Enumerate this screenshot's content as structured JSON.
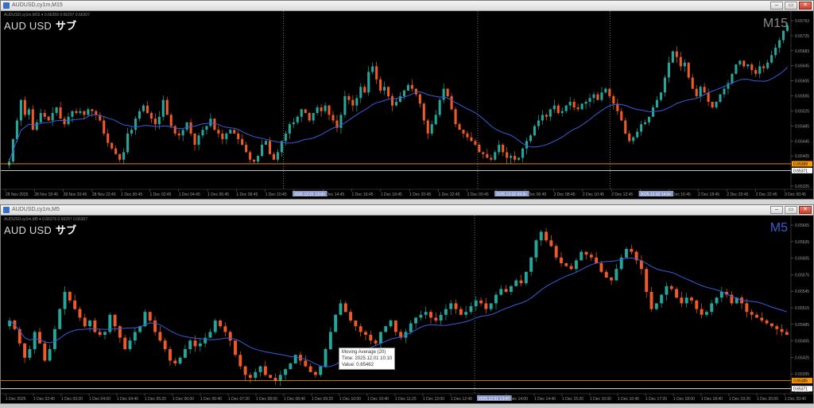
{
  "colors": {
    "background": "#000000",
    "bull": "#26a69a",
    "bear": "#ef5a28",
    "ma": "#3b5bdb",
    "axis_text": "#9a9a9a",
    "grid_marker": "#bbbbbb",
    "price_line_orange": "#ff9900",
    "price_line_white": "#ffffff",
    "m5_label": "#3a5cd0",
    "m15_label": "#8a8a8a"
  },
  "windows": [
    {
      "title": "AUDUSD,cy1m,M15",
      "ohlc": "AUDUSD,cy1m,M15 ▾ 0.66359 0.66297 0.66307",
      "symbol": "AUD USD",
      "sub_label": "サブ",
      "timeframe": "M15",
      "timeframe_color": "#8a8a8a",
      "chart_data": {
        "type": "candlestick",
        "series_name": "AUDUSD M15",
        "ylim": [
          0.65325,
          0.65785
        ],
        "y_ticks": [
          "0.65763",
          "0.65725",
          "0.65683",
          "0.65645",
          "0.65605",
          "0.65565",
          "0.65525",
          "0.65485",
          "0.65445",
          "0.65405",
          "0.65365",
          "0.65325"
        ],
        "x_ticks": [
          "28 Nov 2025",
          "28 Nov 18:45",
          "28 Nov 20:45",
          "28 Nov 22:45",
          "1 Dec 00:45",
          "1 Dec 02:45",
          "1 Dec 04:45",
          "1 Dec 06:45",
          "1 Dec 08:45",
          "1 Dec 10:45",
          "2025.12.01 13:00",
          "1 Dec 14:45",
          "1 Dec 16:45",
          "1 Dec 18:45",
          "1 Dec 20:45",
          "1 Dec 22:45",
          "2 Dec 00:45",
          "2025.12.02 03:30",
          "2 Dec 06:45",
          "2 Dec 08:45",
          "2 Dec 10:45",
          "2 Dec 12:45",
          "2025.12.02 14:00",
          "2 Dec 16:45",
          "2 Dec 18:45",
          "2 Dec 20:45",
          "2 Dec 22:45",
          "3 Dec 00:45"
        ],
        "price_labels": [
          {
            "value": "0.65389",
            "color": "#ff9900"
          },
          {
            "value": "0.65371",
            "color": "#ffffff"
          }
        ],
        "price_line_values": [
          0.65389,
          0.65371
        ],
        "vertical_markers_frac": [
          0.355,
          0.602,
          0.77
        ],
        "closes": [
          0.65395,
          0.65455,
          0.65505,
          0.6556,
          0.6552,
          0.65535,
          0.6548,
          0.655,
          0.65525,
          0.65515,
          0.65505,
          0.65525,
          0.6554,
          0.6551,
          0.65495,
          0.65515,
          0.6553,
          0.65525,
          0.6553,
          0.6552,
          0.65535,
          0.6553,
          0.6552,
          0.65505,
          0.6547,
          0.65445,
          0.6543,
          0.65415,
          0.654,
          0.6542,
          0.6547,
          0.6548,
          0.6551,
          0.6553,
          0.65545,
          0.65525,
          0.6551,
          0.65495,
          0.65515,
          0.6556,
          0.6552,
          0.6549,
          0.6547,
          0.65465,
          0.6548,
          0.655,
          0.6547,
          0.6544,
          0.65465,
          0.6548,
          0.6549,
          0.6551,
          0.6548,
          0.6547,
          0.65455,
          0.6547,
          0.6548,
          0.6547,
          0.65455,
          0.6544,
          0.6542,
          0.654,
          0.65395,
          0.6541,
          0.6544,
          0.6545,
          0.65415,
          0.654,
          0.6542,
          0.6545,
          0.6547,
          0.65495,
          0.655,
          0.65515,
          0.65535,
          0.65525,
          0.65505,
          0.65525,
          0.6554,
          0.6553,
          0.65545,
          0.6552,
          0.65505,
          0.65485,
          0.6552,
          0.6557,
          0.6556,
          0.65545,
          0.65565,
          0.65595,
          0.6558,
          0.65635,
          0.6565,
          0.65615,
          0.65585,
          0.65595,
          0.6557,
          0.65545,
          0.65555,
          0.6557,
          0.65585,
          0.656,
          0.6559,
          0.65575,
          0.6555,
          0.65505,
          0.6547,
          0.65495,
          0.6552,
          0.6556,
          0.6559,
          0.6557,
          0.65535,
          0.65495,
          0.6548,
          0.6547,
          0.6546,
          0.6545,
          0.6544,
          0.6542,
          0.65415,
          0.65405,
          0.654,
          0.6542,
          0.6544,
          0.6542,
          0.65405,
          0.6541,
          0.654,
          0.65405,
          0.6543,
          0.6545,
          0.65465,
          0.6549,
          0.65505,
          0.6552,
          0.65515,
          0.65535,
          0.65545,
          0.65525,
          0.6553,
          0.65545,
          0.65555,
          0.6554,
          0.65535,
          0.6555,
          0.65555,
          0.65565,
          0.65575,
          0.6556,
          0.6558,
          0.6559,
          0.6557,
          0.6555,
          0.6553,
          0.65505,
          0.6547,
          0.6545,
          0.6546,
          0.65475,
          0.65495,
          0.655,
          0.65515,
          0.6554,
          0.6556,
          0.6558,
          0.6562,
          0.6566,
          0.6569,
          0.65675,
          0.6565,
          0.6566,
          0.6562,
          0.6559,
          0.6557,
          0.65595,
          0.6558,
          0.65555,
          0.6554,
          0.65555,
          0.65575,
          0.6559,
          0.65605,
          0.6563,
          0.65655,
          0.65665,
          0.6565,
          0.65655,
          0.6564,
          0.6563,
          0.6565,
          0.65645,
          0.6566,
          0.6568,
          0.657,
          0.6572,
          0.65745,
          0.6576
        ]
      }
    },
    {
      "title": "AUDUSD,cy1m,M5",
      "ohlc": "AUDUSD,cy1m,M5 ▾ 0.66376 0.66297 0.66307",
      "symbol": "AUD USD",
      "sub_label": "サブ",
      "timeframe": "M5",
      "timeframe_color": "#3a5cd0",
      "tooltip": {
        "line1": "Moving Average (20)",
        "line2": "Time: 2025.12.01 10:10",
        "line3": "Value: 0.65462"
      },
      "chart_data": {
        "type": "candlestick",
        "series_name": "AUDUSD M5",
        "ylim": [
          0.65365,
          0.65665
        ],
        "y_ticks": [
          "0.65665",
          "0.65635",
          "0.65605",
          "0.65575",
          "0.65545",
          "0.65515",
          "0.65485",
          "0.65455",
          "0.65425",
          "0.65395",
          "0.65365"
        ],
        "x_ticks": [
          "1 Dec 2025",
          "1 Dec 02:40",
          "1 Dec 03:20",
          "1 Dec 04:00",
          "1 Dec 04:40",
          "1 Dec 05:20",
          "1 Dec 06:00",
          "1 Dec 06:40",
          "1 Dec 07:20",
          "1 Dec 08:00",
          "1 Dec 08:40",
          "1 Dec 09:20",
          "1 Dec 10:00",
          "1 Dec 10:40",
          "1 Dec 11:20",
          "1 Dec 12:00",
          "1 Dec 12:40",
          "2025.12.01 13:40",
          "1 Dec 14:00",
          "1 Dec 14:40",
          "1 Dec 15:20",
          "1 Dec 16:00",
          "1 Dec 16:40",
          "1 Dec 17:20",
          "1 Dec 18:00",
          "1 Dec 18:40",
          "1 Dec 19:20",
          "1 Dec 20:00",
          "1 Dec 20:40"
        ],
        "price_labels": [
          {
            "value": "0.65385",
            "color": "#ff9900"
          },
          {
            "value": "0.65371",
            "color": "#ffffff"
          }
        ],
        "price_line_values": [
          0.65385,
          0.65371
        ],
        "vertical_markers_frac": [
          0.598
        ],
        "closes": [
          0.6549,
          0.65475,
          0.6545,
          0.65425,
          0.6544,
          0.6547,
          0.6545,
          0.6542,
          0.6544,
          0.65475,
          0.6551,
          0.6554,
          0.65525,
          0.6551,
          0.65495,
          0.6548,
          0.6549,
          0.6547,
          0.65465,
          0.6547,
          0.655,
          0.6548,
          0.6546,
          0.6544,
          0.65455,
          0.6547,
          0.6548,
          0.65505,
          0.6549,
          0.6547,
          0.65455,
          0.6544,
          0.6542,
          0.65415,
          0.65425,
          0.6544,
          0.65455,
          0.65445,
          0.6545,
          0.6546,
          0.6547,
          0.6549,
          0.6548,
          0.6547,
          0.65455,
          0.6543,
          0.6541,
          0.65395,
          0.6539,
          0.654,
          0.6541,
          0.65395,
          0.6539,
          0.65385,
          0.65395,
          0.65405,
          0.65415,
          0.6543,
          0.6542,
          0.6541,
          0.654,
          0.65395,
          0.6541,
          0.6544,
          0.6547,
          0.655,
          0.6552,
          0.65505,
          0.6549,
          0.6548,
          0.6547,
          0.65465,
          0.65455,
          0.6545,
          0.6547,
          0.6548,
          0.6549,
          0.6547,
          0.6546,
          0.6547,
          0.65485,
          0.65495,
          0.655,
          0.65505,
          0.65495,
          0.6549,
          0.655,
          0.6551,
          0.6552,
          0.6551,
          0.655,
          0.65505,
          0.65515,
          0.65525,
          0.6552,
          0.6551,
          0.6552,
          0.65535,
          0.65545,
          0.6554,
          0.6555,
          0.6556,
          0.65555,
          0.65575,
          0.656,
          0.6563,
          0.65645,
          0.6563,
          0.6562,
          0.656,
          0.6559,
          0.65585,
          0.6558,
          0.65595,
          0.6561,
          0.65605,
          0.656,
          0.6559,
          0.65575,
          0.65565,
          0.6556,
          0.6558,
          0.656,
          0.65615,
          0.6561,
          0.65595,
          0.6558,
          0.6554,
          0.6551,
          0.6552,
          0.65535,
          0.6555,
          0.65545,
          0.6553,
          0.6552,
          0.6553,
          0.65525,
          0.6551,
          0.655,
          0.65505,
          0.6552,
          0.6553,
          0.6554,
          0.65535,
          0.6552,
          0.6553,
          0.6552,
          0.65505,
          0.655,
          0.65495,
          0.6549,
          0.65485,
          0.6548,
          0.65475,
          0.6547,
          0.65465
        ]
      }
    }
  ]
}
